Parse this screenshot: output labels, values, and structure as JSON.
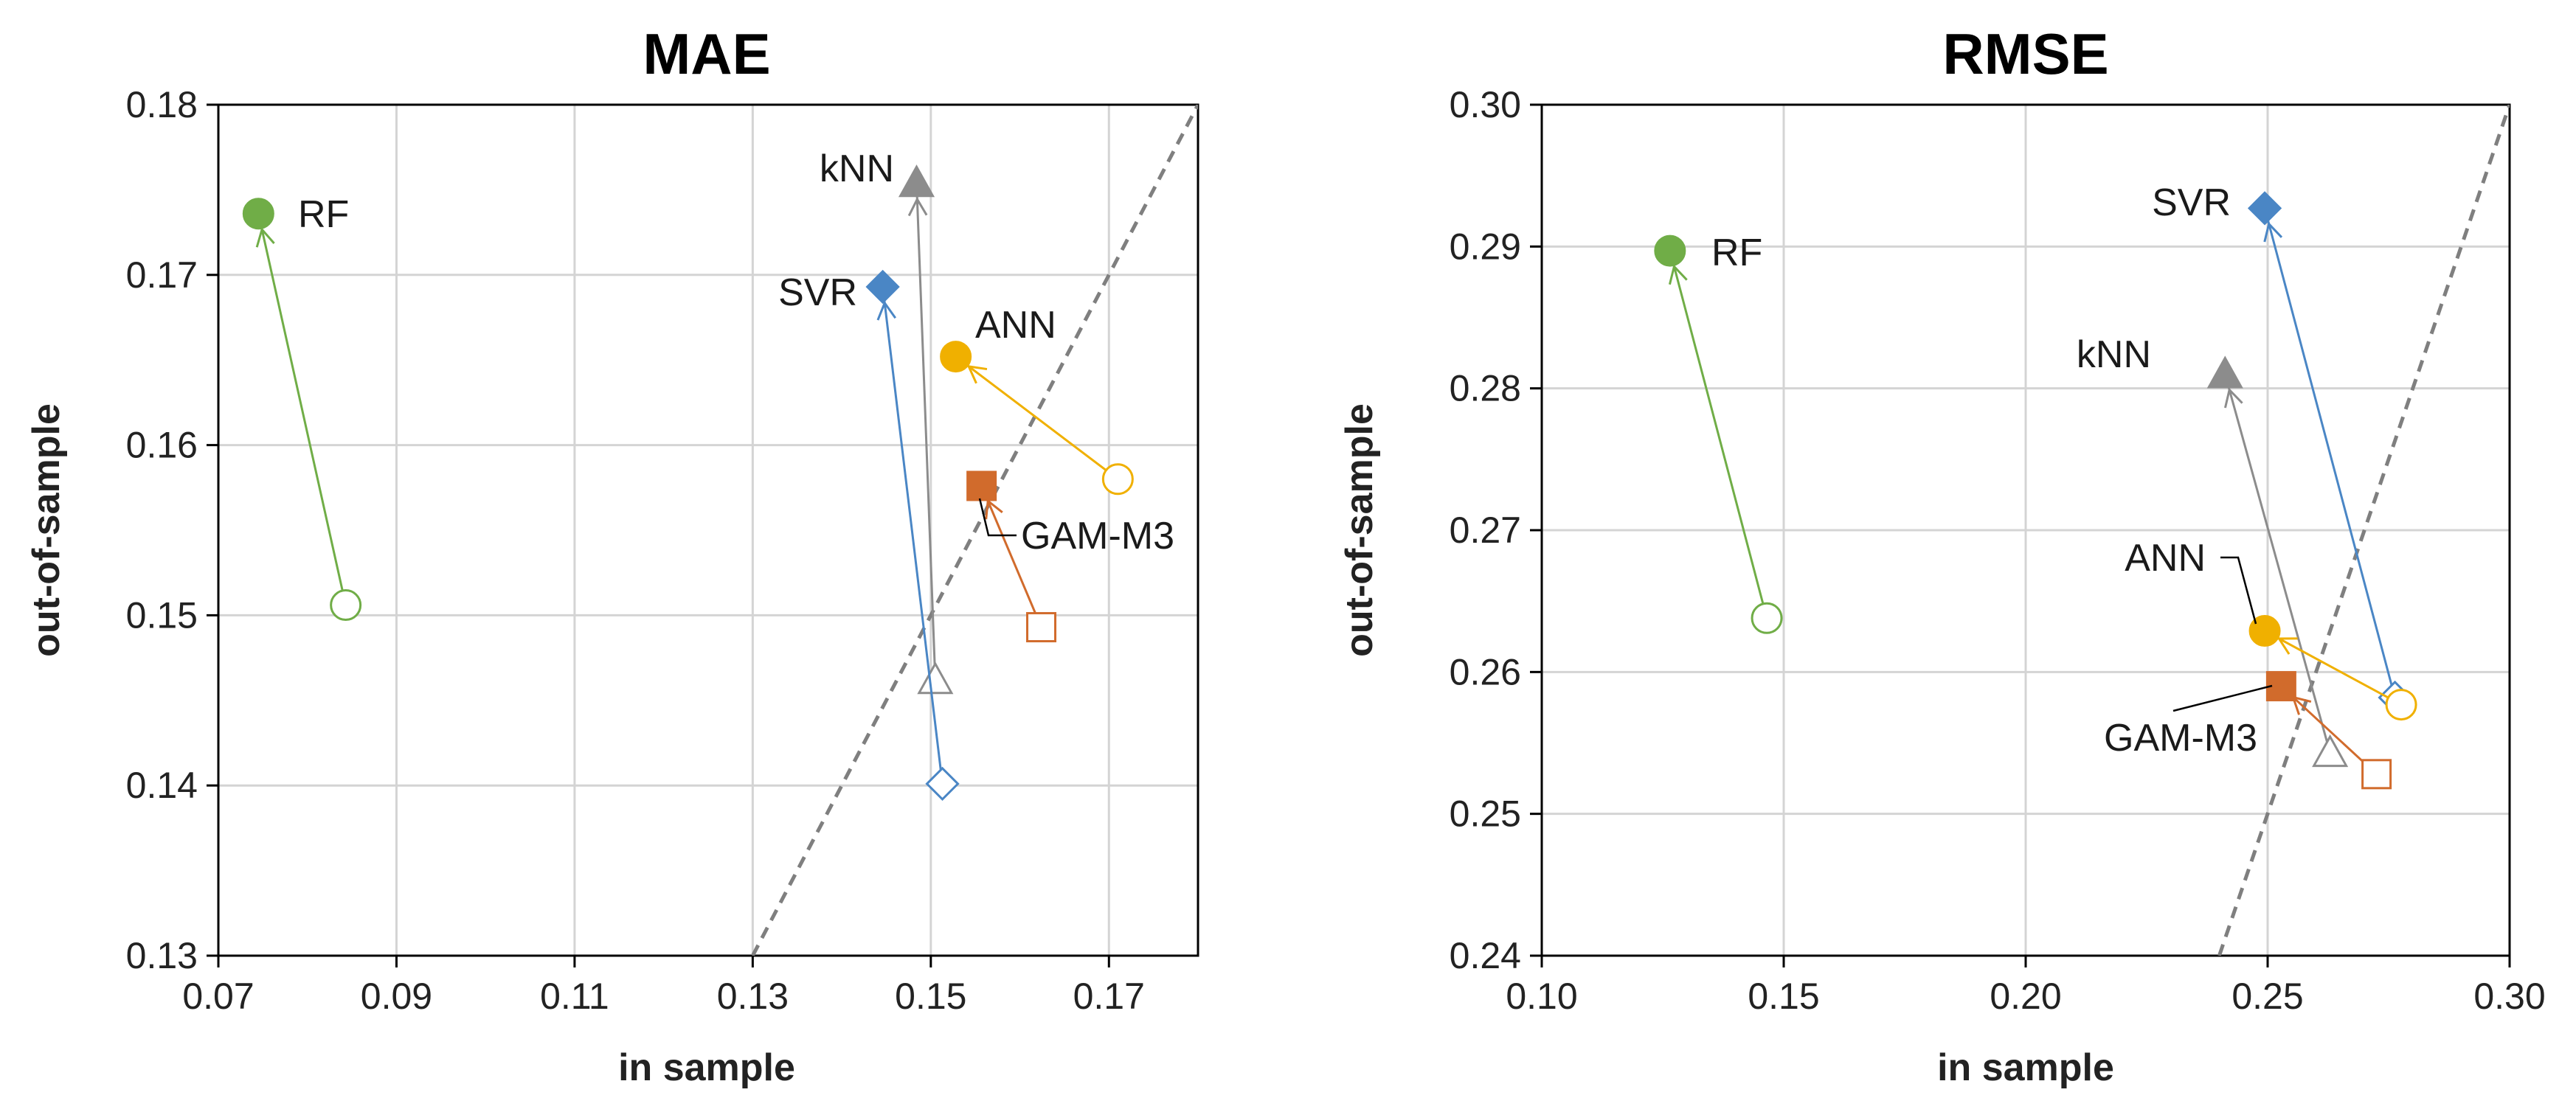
{
  "chart_data": [
    {
      "type": "scatter",
      "title": "MAE",
      "xlabel": "in sample",
      "ylabel": "out-of-sample",
      "xlim": [
        0.07,
        0.18
      ],
      "ylim": [
        0.13,
        0.18
      ],
      "xticks": [
        "0.07",
        "0.09",
        "0.11",
        "0.13",
        "0.15",
        "0.17"
      ],
      "xtick_values": [
        0.07,
        0.09,
        0.11,
        0.13,
        0.15,
        0.17
      ],
      "yticks": [
        "0.13",
        "0.14",
        "0.15",
        "0.16",
        "0.17",
        "0.18"
      ],
      "ytick_values": [
        0.13,
        0.14,
        0.15,
        0.16,
        0.17,
        0.18
      ],
      "grid": true,
      "reference_line": "y = x",
      "series": [
        {
          "name": "RF",
          "color": "#70ad47",
          "marker": "circle",
          "from": [
            0.0843,
            0.1506
          ],
          "to": [
            0.0745,
            0.1736
          ]
        },
        {
          "name": "kNN",
          "color": "#8c8c8c",
          "marker": "triangle",
          "from": [
            0.1505,
            0.1462
          ],
          "to": [
            0.1484,
            0.1754
          ]
        },
        {
          "name": "SVR",
          "color": "#4a86c5",
          "marker": "diamond",
          "from": [
            0.1513,
            0.1401
          ],
          "to": [
            0.1446,
            0.1693
          ]
        },
        {
          "name": "ANN",
          "color": "#f0b000",
          "marker": "circle",
          "from": [
            0.171,
            0.158
          ],
          "to": [
            0.1528,
            0.1652
          ]
        },
        {
          "name": "GAM-M3",
          "color": "#d16b2c",
          "marker": "square",
          "from": [
            0.1624,
            0.1493
          ],
          "to": [
            0.1557,
            0.1576
          ]
        }
      ]
    },
    {
      "type": "scatter",
      "title": "RMSE",
      "xlabel": "in sample",
      "ylabel": "out-of-sample",
      "xlim": [
        0.1,
        0.3
      ],
      "ylim": [
        0.24,
        0.3
      ],
      "xticks": [
        "0.10",
        "0.15",
        "0.20",
        "0.25",
        "0.30"
      ],
      "xtick_values": [
        0.1,
        0.15,
        0.2,
        0.25,
        0.3
      ],
      "yticks": [
        "0.24",
        "0.25",
        "0.26",
        "0.27",
        "0.28",
        "0.29",
        "0.30"
      ],
      "ytick_values": [
        0.24,
        0.25,
        0.26,
        0.27,
        0.28,
        0.29,
        0.3
      ],
      "grid": true,
      "reference_line": "y = x",
      "series": [
        {
          "name": "RF",
          "color": "#70ad47",
          "marker": "circle",
          "from": [
            0.1465,
            0.2638
          ],
          "to": [
            0.1265,
            0.2897
          ]
        },
        {
          "name": "SVR",
          "color": "#4a86c5",
          "marker": "diamond",
          "from": [
            0.2763,
            0.2582
          ],
          "to": [
            0.2494,
            0.2927
          ]
        },
        {
          "name": "kNN",
          "color": "#8c8c8c",
          "marker": "triangle",
          "from": [
            0.2629,
            0.2543
          ],
          "to": [
            0.2412,
            0.281
          ]
        },
        {
          "name": "ANN",
          "color": "#f0b000",
          "marker": "circle",
          "from": [
            0.2776,
            0.2577
          ],
          "to": [
            0.2494,
            0.2629
          ]
        },
        {
          "name": "GAM-M3",
          "color": "#d16b2c",
          "marker": "square",
          "from": [
            0.2725,
            0.2528
          ],
          "to": [
            0.2528,
            0.259
          ]
        }
      ]
    }
  ]
}
